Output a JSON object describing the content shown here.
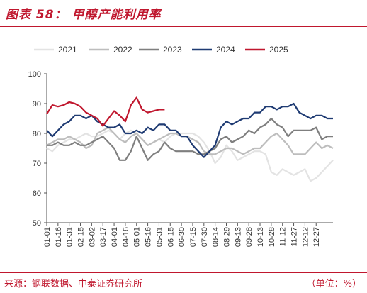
{
  "title": "图表 58： 甲醇产能利用率",
  "footer": {
    "source": "来源：钢联数据、中泰证券研究所",
    "unit": "（单位：%）"
  },
  "chart_data": {
    "type": "line",
    "ylim": [
      50,
      100
    ],
    "yticks": [
      50,
      60,
      70,
      80,
      90,
      100
    ],
    "x_tick_labels": [
      "01-01",
      "01-16",
      "01-31",
      "02-15",
      "03-02",
      "03-17",
      "04-01",
      "04-16",
      "05-01",
      "05-16",
      "05-31",
      "06-15",
      "06-30",
      "07-15",
      "07-30",
      "08-14",
      "08-29",
      "09-13",
      "09-28",
      "10-13",
      "10-28",
      "11-12",
      "11-27",
      "12-12",
      "12-27"
    ],
    "x_count": 52,
    "legend_position": "top",
    "series": [
      {
        "name": "2021",
        "color": "#e3e3e3",
        "values": [
          75,
          74,
          76,
          77,
          78,
          78,
          79,
          80,
          79,
          79,
          80,
          81,
          80,
          78,
          80,
          81,
          80,
          78,
          76,
          77,
          78,
          77,
          79,
          80,
          80,
          80,
          80,
          79,
          77,
          74,
          70,
          72,
          76,
          74,
          71,
          72,
          73,
          74,
          74,
          73,
          67,
          66,
          68,
          67,
          66,
          67,
          68,
          64,
          65,
          67,
          69,
          71
        ]
      },
      {
        "name": "2022",
        "color": "#bdbdbd",
        "values": [
          76,
          77,
          78,
          78,
          79,
          78,
          77,
          75,
          76,
          80,
          81,
          82,
          80,
          78,
          77,
          79,
          80,
          78,
          76,
          77,
          78,
          79,
          80,
          80,
          79,
          79,
          78,
          77,
          74,
          73,
          73,
          74,
          75,
          75,
          74,
          73,
          74,
          75,
          75,
          77,
          79,
          80,
          78,
          76,
          73,
          73,
          73,
          75,
          77,
          75,
          76,
          75
        ]
      },
      {
        "name": "2023",
        "color": "#7f7f7f",
        "values": [
          76,
          76,
          77,
          76,
          76,
          77,
          76,
          76,
          77,
          78,
          79,
          77,
          75,
          71,
          71,
          74,
          79,
          75,
          71,
          73,
          74,
          77,
          75,
          74,
          74,
          74,
          74,
          73,
          73,
          74,
          75,
          78,
          79,
          77,
          78,
          79,
          81,
          80,
          82,
          83,
          85,
          83,
          82,
          79,
          81,
          81,
          81,
          81,
          82,
          78,
          79,
          79
        ]
      },
      {
        "name": "2024",
        "color": "#1f3b73",
        "values": [
          81,
          79,
          81,
          83,
          84,
          86,
          86,
          85,
          86,
          84,
          83,
          82,
          82,
          83,
          80,
          80,
          81,
          80,
          82,
          81,
          83,
          83,
          81,
          81,
          79,
          79,
          76,
          74,
          72,
          74,
          76,
          82,
          84,
          83,
          84,
          85,
          85,
          87,
          87,
          89,
          89,
          88,
          89,
          89,
          90,
          87,
          86,
          85,
          86,
          86,
          85,
          85
        ]
      },
      {
        "name": "2025",
        "color": "#c0172e",
        "values": [
          86.5,
          89.5,
          89,
          89.5,
          90.5,
          90,
          89,
          87,
          86,
          85,
          82.5,
          85,
          87.5,
          86,
          84,
          89.5,
          92,
          88,
          87,
          87.5,
          88,
          88,
          null,
          null,
          null,
          null,
          null,
          null,
          null,
          null,
          null,
          null,
          null,
          null,
          null,
          null,
          null,
          null,
          null,
          null,
          null,
          null,
          null,
          null,
          null,
          null,
          null,
          null,
          null,
          null,
          null,
          null
        ]
      }
    ]
  }
}
